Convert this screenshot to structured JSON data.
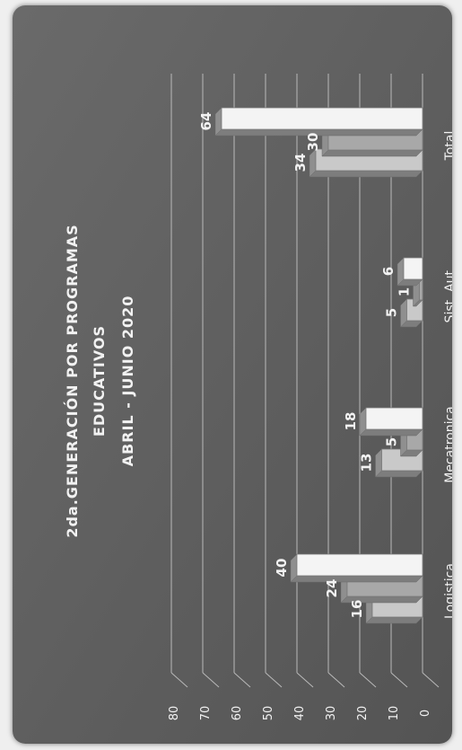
{
  "chart_data": {
    "type": "bar",
    "title_lines": [
      "2da.GENERACIÓN POR PROGRAMAS",
      "EDUCATIVOS",
      "ABRIL - JUNIO 2020"
    ],
    "categories": [
      "Logistica",
      "Mecatronica",
      "Sist. Aut.",
      "Total"
    ],
    "series": [
      {
        "values": [
          16,
          13,
          5,
          34
        ],
        "color": "#c9c9c9"
      },
      {
        "values": [
          24,
          5,
          1,
          30
        ],
        "color": "#a8a8a8"
      },
      {
        "values": [
          40,
          18,
          6,
          64
        ],
        "color": "#f4f4f4"
      }
    ],
    "yticks": [
      0,
      10,
      20,
      30,
      40,
      50,
      60,
      70,
      80
    ],
    "ylim": [
      0,
      80
    ],
    "grid": true,
    "legend": "none",
    "background": "#5f5f5f",
    "text_color": "#f2f2f2"
  }
}
